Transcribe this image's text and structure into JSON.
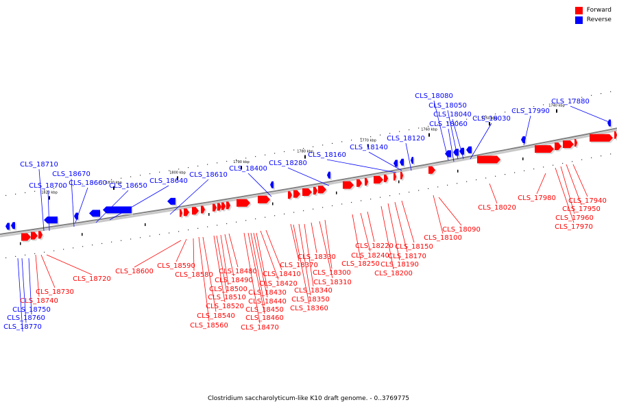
{
  "caption": "Clostridium saccharolyticum-like K10 draft genome. - 0..3769775",
  "colors": {
    "forward": "#ff0000",
    "reverse": "#0000ff",
    "backbone": "#808080"
  },
  "legend": [
    {
      "label": "Forward",
      "color": "#ff0000"
    },
    {
      "label": "Reverse",
      "color": "#0000ff"
    }
  ],
  "scale_labels": [
    "1740 kbp",
    "1750 kbp",
    "1760 kbp",
    "1770 kbp",
    "1780 kbp",
    "1790 kbp",
    "1800 kbp",
    "1810 kbp",
    "1820 kbp"
  ],
  "reverse_genes": [
    "CLS_17880",
    "CLS_17990",
    "CLS_18030",
    "CLS_18040",
    "CLS_18050",
    "CLS_18060",
    "CLS_18080",
    "CLS_18120",
    "CLS_18140",
    "CLS_18160",
    "CLS_18280",
    "CLS_18400",
    "CLS_18610",
    "CLS_18640",
    "CLS_18650",
    "CLS_18660",
    "CLS_18670",
    "CLS_18700",
    "CLS_18710",
    "CLS_18750",
    "CLS_18760",
    "CLS_18770"
  ],
  "forward_genes": [
    "CLS_17940",
    "CLS_17950",
    "CLS_17960",
    "CLS_17970",
    "CLS_17980",
    "CLS_18020",
    "CLS_18090",
    "CLS_18100",
    "CLS_18150",
    "CLS_18170",
    "CLS_18190",
    "CLS_18200",
    "CLS_18220",
    "CLS_18240",
    "CLS_18250",
    "CLS_18300",
    "CLS_18310",
    "CLS_18330",
    "CLS_18340",
    "CLS_18350",
    "CLS_18360",
    "CLS_18370",
    "CLS_18410",
    "CLS_18420",
    "CLS_18430",
    "CLS_18440",
    "CLS_18450",
    "CLS_18460",
    "CLS_18470",
    "CLS_18480",
    "CLS_18490",
    "CLS_18500",
    "CLS_18510",
    "CLS_18520",
    "CLS_18540",
    "CLS_18560",
    "CLS_18580",
    "CLS_18590",
    "CLS_18600",
    "CLS_18720",
    "CLS_18730",
    "CLS_18740"
  ]
}
